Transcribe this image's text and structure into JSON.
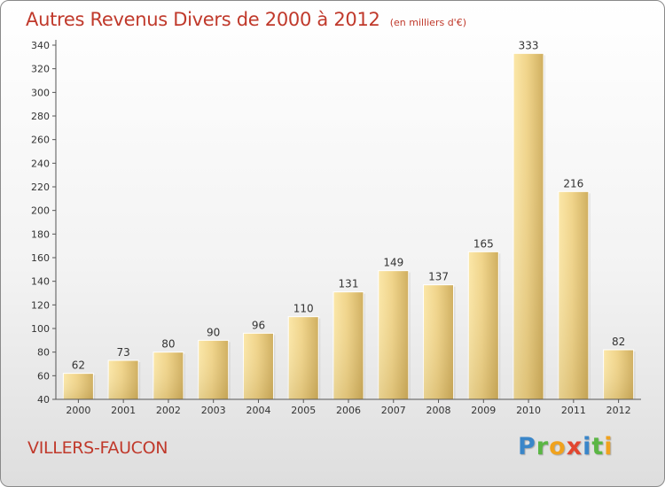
{
  "chart_data": {
    "type": "bar",
    "title": "Autres Revenus Divers de 2000 à 2012",
    "subtitle": "(en milliers d'€)",
    "categories": [
      "2000",
      "2001",
      "2002",
      "2003",
      "2004",
      "2005",
      "2006",
      "2007",
      "2008",
      "2009",
      "2010",
      "2011",
      "2012"
    ],
    "values": [
      62,
      73,
      80,
      90,
      96,
      110,
      131,
      149,
      137,
      165,
      333,
      216,
      82
    ],
    "ylim": [
      40,
      340
    ],
    "yticks": [
      40,
      60,
      80,
      100,
      120,
      140,
      160,
      180,
      200,
      220,
      240,
      260,
      280,
      300,
      320,
      340
    ],
    "grid": false,
    "bar_color": "#e9cd7d",
    "xlabel": "",
    "ylabel": ""
  },
  "commune": "VILLERS-FAUCON",
  "logo": {
    "letters": [
      {
        "char": "P",
        "color": "#3a86c9"
      },
      {
        "char": "r",
        "color": "#5bb645"
      },
      {
        "char": "o",
        "color": "#f0a21e"
      },
      {
        "char": "x",
        "color": "#e2462f"
      },
      {
        "char": "i",
        "color": "#3a86c9"
      },
      {
        "char": "t",
        "color": "#5bb645"
      },
      {
        "char": "i",
        "color": "#f0a21e"
      }
    ]
  },
  "colors": {
    "title": "#c0392b",
    "bar": "#e9cd7d",
    "axis": "#555555"
  }
}
